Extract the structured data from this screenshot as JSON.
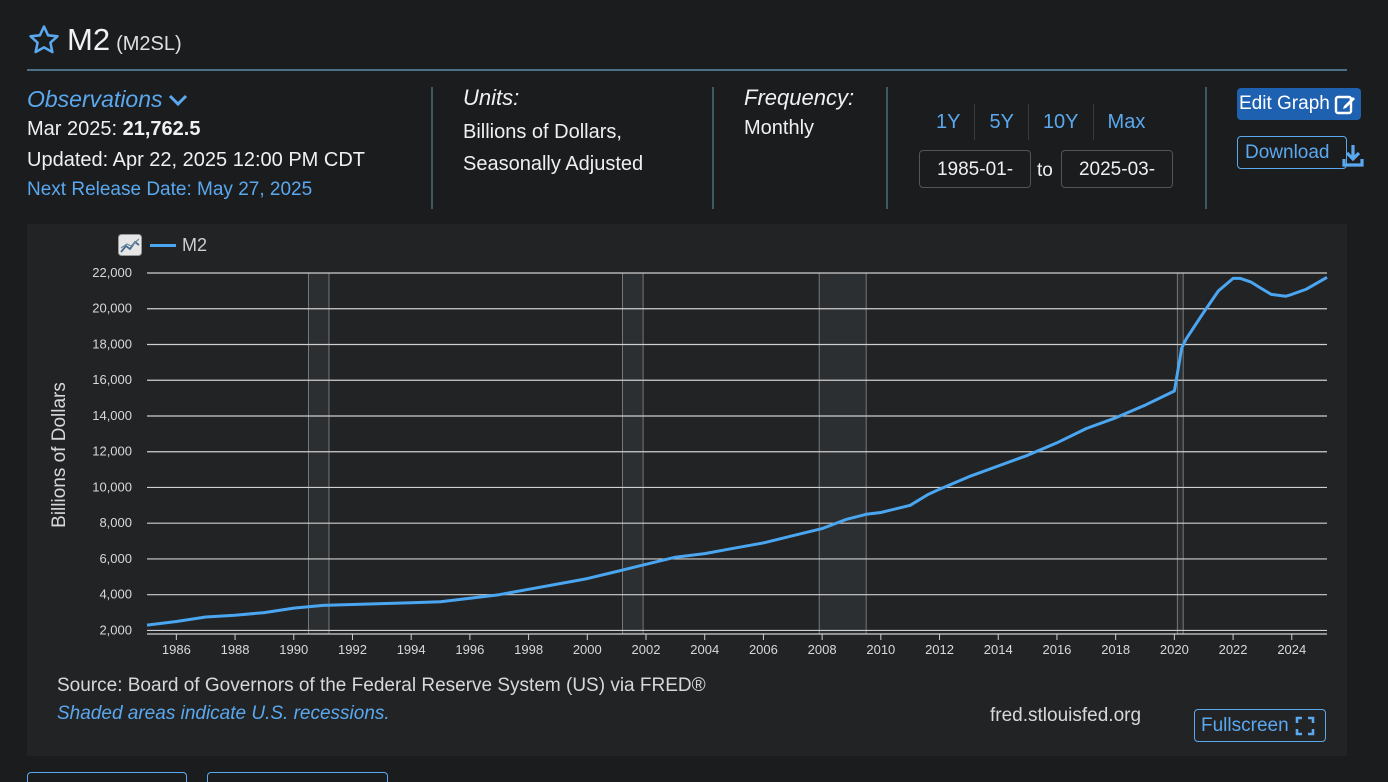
{
  "header": {
    "title": "M2",
    "code": "(M2SL)"
  },
  "observations": {
    "label": "Observations",
    "date": "Mar 2025:",
    "value": "21,762.5",
    "updated": "Updated: Apr 22, 2025 12:00 PM CDT",
    "next_release": "Next Release Date: May 27, 2025"
  },
  "units": {
    "label": "Units:",
    "line1": "Billions of Dollars,",
    "line2": "Seasonally Adjusted"
  },
  "frequency": {
    "label": "Frequency:",
    "value": "Monthly"
  },
  "range": {
    "buttons": [
      "1Y",
      "5Y",
      "10Y",
      "Max"
    ],
    "start": "1985-01-",
    "to": "to",
    "end": "2025-03-"
  },
  "actions": {
    "edit": "Edit Graph",
    "download": "Download",
    "fullscreen": "Fullscreen"
  },
  "footer": {
    "source": "Source: Board of Governors of the Federal Reserve System (US) via FRED®",
    "shaded": "Shaded areas indicate U.S. recessions.",
    "site": "fred.stlouisfed.org"
  },
  "colors": {
    "line": "#4aa6f0",
    "accent": "#5aa8ee",
    "button": "#1f61b1",
    "recession": "#2c2f32"
  },
  "chart_data": {
    "type": "line",
    "title": "",
    "xlabel": "",
    "ylabel": "Billions of Dollars",
    "ylim": [
      1800,
      22000
    ],
    "xlim": [
      1985.0,
      2025.2
    ],
    "grid": true,
    "legend_position": "top-left",
    "y_ticks": [
      "2,000",
      "4,000",
      "6,000",
      "8,000",
      "10,000",
      "12,000",
      "14,000",
      "16,000",
      "18,000",
      "20,000",
      "22,000"
    ],
    "y_tick_values": [
      2000,
      4000,
      6000,
      8000,
      10000,
      12000,
      14000,
      16000,
      18000,
      20000,
      22000
    ],
    "x_ticks": [
      "1986",
      "1988",
      "1990",
      "1992",
      "1994",
      "1996",
      "1998",
      "2000",
      "2002",
      "2004",
      "2006",
      "2008",
      "2010",
      "2012",
      "2014",
      "2016",
      "2018",
      "2020",
      "2022",
      "2024"
    ],
    "x_tick_values": [
      1986,
      1988,
      1990,
      1992,
      1994,
      1996,
      1998,
      2000,
      2002,
      2004,
      2006,
      2008,
      2010,
      2012,
      2014,
      2016,
      2018,
      2020,
      2022,
      2024
    ],
    "recessions": [
      [
        1990.5,
        1991.2
      ],
      [
        2001.2,
        2001.9
      ],
      [
        2007.9,
        2009.5
      ],
      [
        2020.1,
        2020.3
      ]
    ],
    "series": [
      {
        "name": "M2",
        "x": [
          1985.0,
          1986.0,
          1987.0,
          1988.0,
          1989.0,
          1990.0,
          1991.0,
          1992.0,
          1993.0,
          1994.0,
          1995.0,
          1996.0,
          1997.0,
          1998.0,
          1999.0,
          2000.0,
          2001.0,
          2002.0,
          2003.0,
          2004.0,
          2005.0,
          2006.0,
          2007.0,
          2008.0,
          2008.8,
          2009.5,
          2010.0,
          2011.0,
          2011.6,
          2012.0,
          2013.0,
          2014.0,
          2015.0,
          2016.0,
          2017.0,
          2018.0,
          2019.0,
          2020.0,
          2020.25,
          2020.4,
          2021.0,
          2021.5,
          2022.0,
          2022.25,
          2022.6,
          2023.0,
          2023.3,
          2023.8,
          2024.0,
          2024.5,
          2025.2
        ],
        "y": [
          2300,
          2500,
          2750,
          2850,
          3000,
          3250,
          3400,
          3450,
          3500,
          3550,
          3600,
          3800,
          4000,
          4300,
          4600,
          4900,
          5300,
          5700,
          6100,
          6300,
          6600,
          6900,
          7300,
          7700,
          8200,
          8500,
          8600,
          9000,
          9600,
          9900,
          10600,
          11200,
          11800,
          12500,
          13300,
          13900,
          14600,
          15400,
          17800,
          18300,
          19800,
          21000,
          21700,
          21700,
          21500,
          21100,
          20800,
          20700,
          20800,
          21100,
          21760
        ]
      }
    ]
  }
}
